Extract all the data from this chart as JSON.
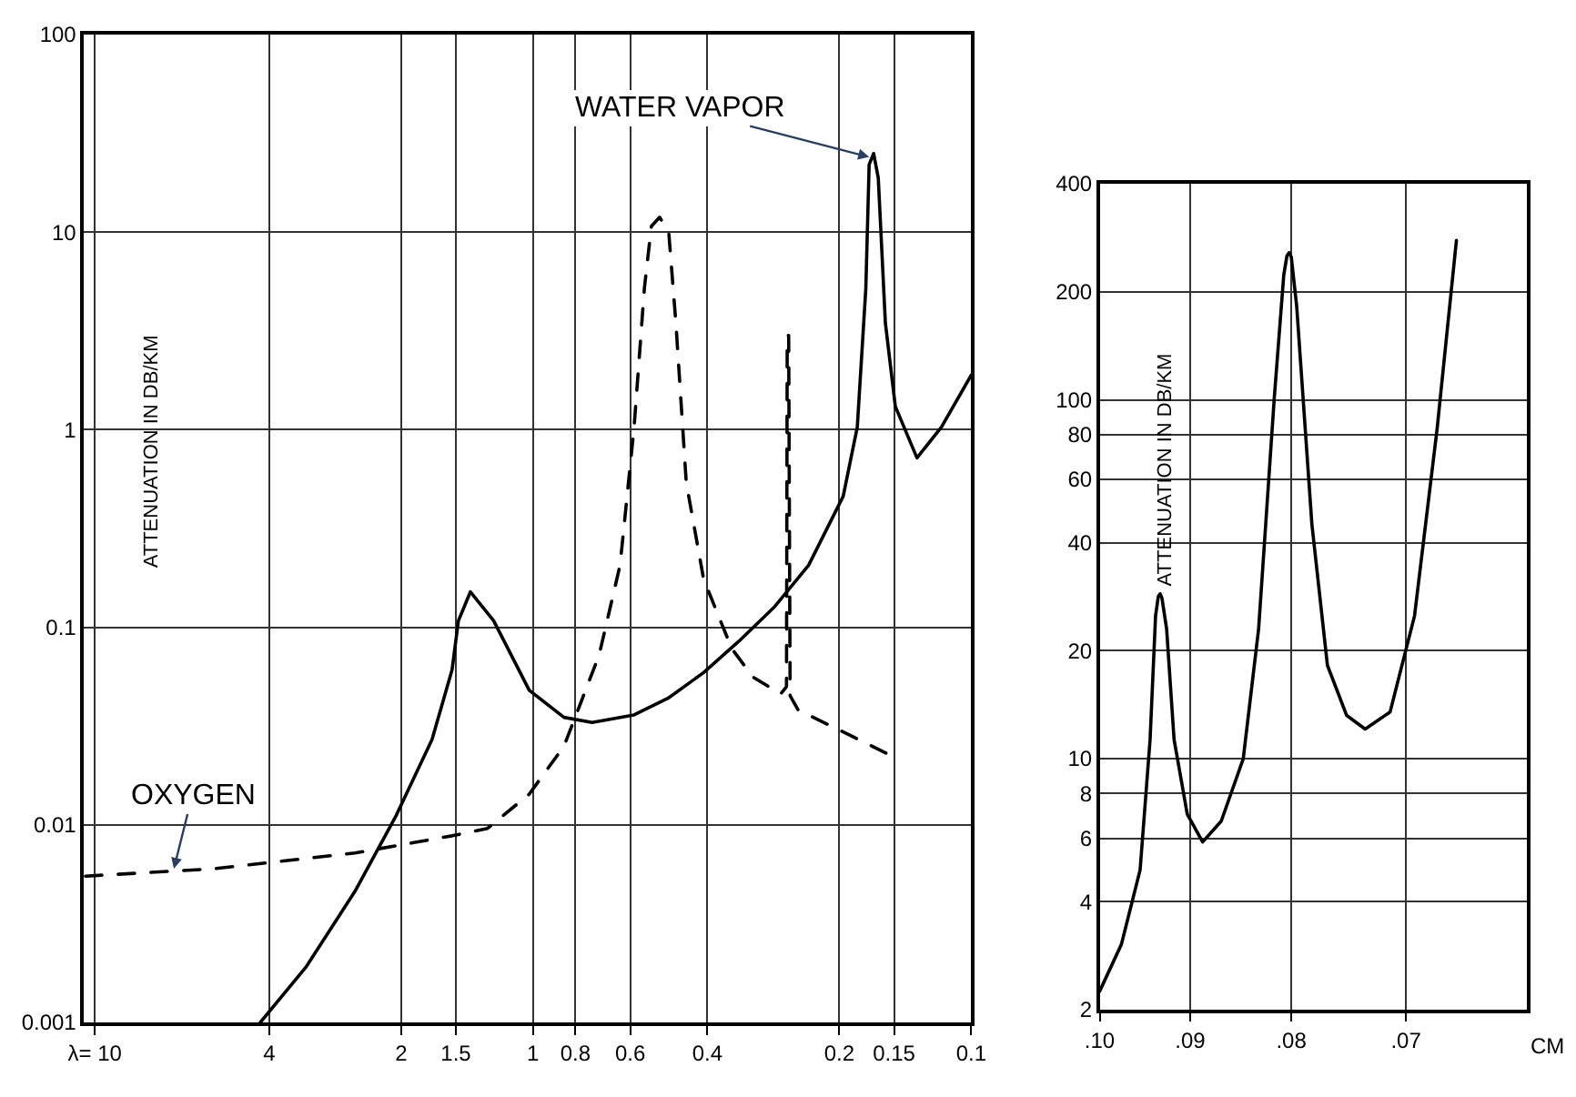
{
  "chart_data": [
    {
      "type": "line",
      "ylabel": "ATTENUATION IN DB/KM",
      "log": "xy",
      "grid": true,
      "xlim": [
        10.6,
        0.1
      ],
      "ylim": [
        0.001,
        100
      ],
      "xticks": [
        {
          "value": 10,
          "label": "λ= 10"
        },
        4,
        2,
        1.5,
        1,
        0.8,
        0.6,
        0.4,
        0.2,
        0.15,
        0.1
      ],
      "yticks": [
        0.001,
        0.01,
        0.1,
        1,
        10,
        100
      ],
      "series": [
        {
          "color": "#000000",
          "line_style": "solid",
          "x": [
            4.19,
            3.3,
            2.55,
            2.05,
            1.7,
            1.53,
            1.48,
            1.39,
            1.23,
            1.02,
            0.85,
            0.733,
            0.588,
            0.49,
            0.408,
            0.339,
            0.282,
            0.235,
            0.196,
            0.182,
            0.174,
            0.171,
            0.167,
            0.163,
            0.157,
            0.149,
            0.133,
            0.117,
            0.1
          ],
          "values": [
            0.001,
            0.0019,
            0.0046,
            0.0112,
            0.027,
            0.061,
            0.108,
            0.151,
            0.108,
            0.048,
            0.035,
            0.033,
            0.036,
            0.044,
            0.059,
            0.085,
            0.126,
            0.206,
            0.46,
            1.03,
            5.2,
            22,
            25,
            18.8,
            3.46,
            1.31,
            0.72,
            1.03,
            1.89
          ]
        },
        {
          "color": "#000000",
          "line_style": "dashed",
          "x": [
            10.5,
            5.32,
            2.55,
            1.53,
            1.27,
            1.02,
            0.85,
            0.707,
            0.633,
            0.588,
            0.557,
            0.537,
            0.514,
            0.49,
            0.472,
            0.447,
            0.408,
            0.352,
            0.315,
            0.272,
            0.264,
            0.263,
            0.261,
            0.259,
            0.248,
            0.211,
            0.156
          ],
          "values": [
            0.0055,
            0.006,
            0.0072,
            0.0088,
            0.0096,
            0.0143,
            0.025,
            0.072,
            0.206,
            1.03,
            5.2,
            10.7,
            11.9,
            9.9,
            3.46,
            0.54,
            0.175,
            0.078,
            0.056,
            0.046,
            0.05,
            3.0,
            3.0,
            0.045,
            0.038,
            0.032,
            0.023
          ]
        }
      ],
      "annotations": [
        {
          "text": "WATER VAPOR",
          "x": 0.171,
          "y": 24
        },
        {
          "text": "OXYGEN",
          "x": 6.6,
          "y": 0.006
        }
      ]
    },
    {
      "type": "line",
      "ylabel": "ATTENUATION IN DB/KM",
      "xlabel": "CM",
      "log": "xy",
      "grid": true,
      "xlim": [
        0.1,
        0.0608
      ],
      "ylim": [
        2,
        400
      ],
      "xticks": [
        {
          "value": 0.1,
          "label": ".10"
        },
        {
          "value": 0.09,
          "label": ".09"
        },
        {
          "value": 0.08,
          "label": ".08"
        },
        {
          "value": 0.07,
          "label": ".07"
        }
      ],
      "yticks": [
        2,
        4,
        6,
        8,
        10,
        20,
        40,
        60,
        80,
        100,
        200,
        400
      ],
      "series": [
        {
          "color": "#000000",
          "line_style": "solid",
          "x": [
            0.1,
            0.0975,
            0.0954,
            0.0943,
            0.0937,
            0.0934,
            0.0932,
            0.093,
            0.0925,
            0.0917,
            0.0903,
            0.0887,
            0.0868,
            0.0846,
            0.0831,
            0.0816,
            0.0807,
            0.0804,
            0.0802,
            0.08,
            0.0795,
            0.0781,
            0.0767,
            0.075,
            0.0734,
            0.0713,
            0.0693,
            0.0675,
            0.066
          ],
          "values": [
            2.25,
            3.04,
            4.9,
            11.3,
            25,
            28.3,
            28.8,
            28,
            23,
            11.3,
            7.0,
            5.86,
            6.7,
            10.0,
            23,
            101,
            223,
            252,
            257,
            250,
            183,
            45,
            18.2,
            13.2,
            12.1,
            13.5,
            25,
            83,
            278
          ]
        }
      ]
    }
  ]
}
